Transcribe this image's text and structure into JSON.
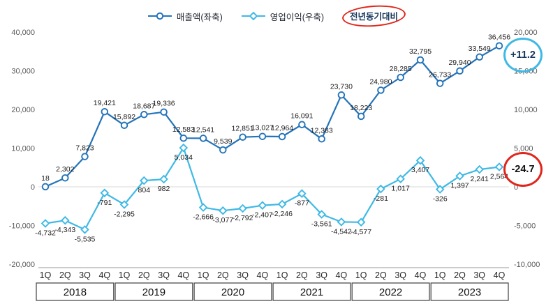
{
  "legend": {
    "series1": "매출액(좌축)",
    "series2": "영업이익(우축)",
    "yoy": "전년동기대비"
  },
  "badges": {
    "revenue_yoy": "+11.2",
    "opincome_yoy": "-24.7"
  },
  "colors": {
    "revenue": "#2373B9",
    "opincome": "#3FB9E5",
    "accent-red": "#E1251B",
    "navy": "#17375E"
  },
  "chart_data": {
    "type": "line",
    "title": "",
    "quarter_labels": [
      "1Q",
      "2Q",
      "3Q",
      "4Q"
    ],
    "year_groups": [
      "2018",
      "2019",
      "2020",
      "2021",
      "2022",
      "2023"
    ],
    "legend_position": "top",
    "grid": "zero-line-only",
    "left_axis": {
      "label": "매출액(좌축)",
      "range": [
        -20000,
        40000
      ],
      "ticks": [
        40000,
        30000,
        20000,
        10000,
        0,
        -10000,
        -20000
      ]
    },
    "right_axis": {
      "label": "영업이익(우축)",
      "range": [
        -10000,
        20000
      ],
      "ticks": [
        20000,
        15000,
        10000,
        5000,
        0,
        -5000,
        -10000
      ]
    },
    "series": [
      {
        "name": "매출액(좌축)",
        "axis": "left",
        "marker": "circle",
        "color": "#2373B9",
        "values": [
          18,
          2302,
          7823,
          19421,
          15892,
          18687,
          19336,
          12583,
          12541,
          9539,
          12851,
          13027,
          12964,
          16091,
          12383,
          23730,
          18223,
          24980,
          28285,
          32795,
          26733,
          29940,
          33549,
          36456
        ]
      },
      {
        "name": "영업이익(우축)",
        "axis": "right",
        "marker": "diamond",
        "color": "#3FB9E5",
        "values": [
          -4732,
          -4343,
          -5535,
          -791,
          -2295,
          804,
          982,
          5034,
          -2666,
          -3077,
          -2792,
          -2407,
          -2246,
          -877,
          -3561,
          -4542,
          -4577,
          -281,
          1017,
          3407,
          -326,
          1397,
          2241,
          2564
        ]
      }
    ],
    "annotations": [
      {
        "text": "+11.2",
        "applies_to": "매출액(좌축)",
        "style": "circled-cyan"
      },
      {
        "text": "-24.7",
        "applies_to": "영업이익(우축)",
        "style": "circled-red"
      }
    ]
  }
}
